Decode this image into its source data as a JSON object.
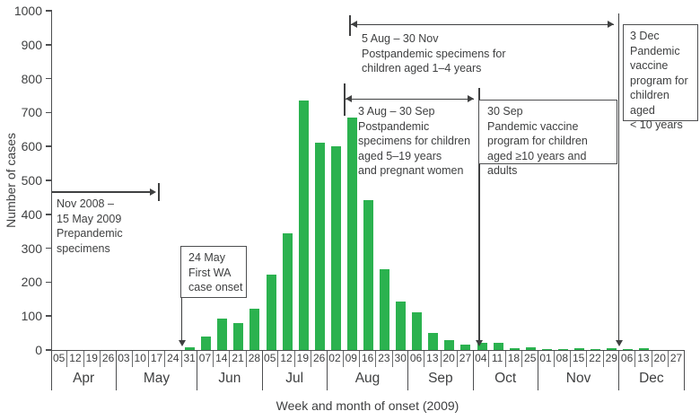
{
  "chart_data": {
    "type": "bar",
    "title": "",
    "xlabel": "Week and month of onset (2009)",
    "ylabel": "Number of cases",
    "ylim": [
      0,
      1000
    ],
    "ytick_step": 100,
    "grid": false,
    "bar_color": "#2BB24F",
    "months": [
      {
        "name": "Apr",
        "weeks": [
          "05",
          "12",
          "19",
          "26"
        ],
        "values": [
          0,
          0,
          0,
          0
        ]
      },
      {
        "name": "May",
        "weeks": [
          "03",
          "10",
          "17",
          "24",
          "31"
        ],
        "values": [
          0,
          0,
          0,
          0,
          8
        ]
      },
      {
        "name": "Jun",
        "weeks": [
          "07",
          "14",
          "21",
          "28"
        ],
        "values": [
          40,
          92,
          80,
          122
        ]
      },
      {
        "name": "Jul",
        "weeks": [
          "05",
          "12",
          "19",
          "26"
        ],
        "values": [
          222,
          345,
          735,
          612
        ]
      },
      {
        "name": "Aug",
        "weeks": [
          "02",
          "09",
          "16",
          "23",
          "30"
        ],
        "values": [
          600,
          685,
          443,
          238,
          142
        ]
      },
      {
        "name": "Sep",
        "weeks": [
          "06",
          "13",
          "20",
          "27"
        ],
        "values": [
          111,
          50,
          28,
          16
        ]
      },
      {
        "name": "Oct",
        "weeks": [
          "04",
          "11",
          "18",
          "25"
        ],
        "values": [
          20,
          22,
          5,
          8
        ]
      },
      {
        "name": "Nov",
        "weeks": [
          "01",
          "08",
          "15",
          "22",
          "29"
        ],
        "values": [
          2,
          3,
          6,
          3,
          5
        ]
      },
      {
        "name": "Dec",
        "weeks": [
          "06",
          "13",
          "20",
          "27"
        ],
        "values": [
          4,
          6,
          0,
          0
        ]
      }
    ]
  },
  "annotations": {
    "prepandemic": {
      "label": "Nov 2008 –\n15 May 2009\nPrepandemic\nspecimens"
    },
    "first_wa_case": {
      "label": "24 May\nFirst WA\ncase onset"
    },
    "postpandemic_children_1_4": {
      "label": "5 Aug – 30 Nov\nPostpandemic specimens for\nchildren aged 1–4 years"
    },
    "postpandemic_children_5_19": {
      "label": "3 Aug – 30 Sep\nPostpandemic\nspecimens for children\naged 5–19 years\nand pregnant women"
    },
    "vaccine_program_adults": {
      "label": "30 Sep\nPandemic vaccine\nprogram for children\naged ≥10 years and adults"
    },
    "vaccine_program_children": {
      "label": "3 Dec\nPandemic\nvaccine\nprogram for\nchildren aged\n< 10 years"
    }
  },
  "colors": {
    "bar": "#2BB24F",
    "line": "#3F4041",
    "axis": "#4D4E50",
    "text": "#3F4041"
  }
}
